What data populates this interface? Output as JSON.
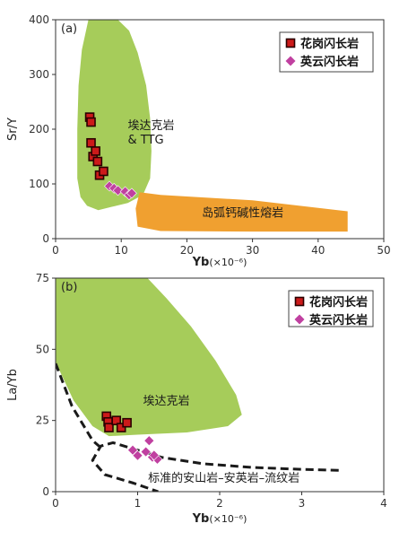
{
  "chart_data": [
    {
      "type": "scatter",
      "panel_label": "(a)",
      "xlabel_main": "Yb",
      "xlabel_unit": "(×10⁻⁶)",
      "ylabel": "Sr/Y",
      "xlim": [
        0,
        50
      ],
      "ylim": [
        0,
        400
      ],
      "xticks": [
        "0",
        "10",
        "20",
        "30",
        "40",
        "50"
      ],
      "yticks": [
        "0",
        "100",
        "200",
        "300",
        "400"
      ],
      "legend_position": "top-right",
      "series": [
        {
          "name": "花岗闪长岩",
          "marker": "square",
          "color": "#cc1a1a",
          "points": [
            [
              5.2,
              222
            ],
            [
              5.4,
              213
            ],
            [
              5.4,
              175
            ],
            [
              5.7,
              150
            ],
            [
              6.1,
              160
            ],
            [
              6.4,
              141
            ],
            [
              6.7,
              116
            ],
            [
              7.3,
              123
            ]
          ]
        },
        {
          "name": "英云闪长岩",
          "marker": "diamond",
          "color": "#c040a0",
          "points": [
            [
              8.2,
              96
            ],
            [
              8.9,
              92
            ],
            [
              9.5,
              88
            ],
            [
              10.6,
              86
            ],
            [
              11.2,
              80
            ],
            [
              11.6,
              83
            ]
          ]
        }
      ],
      "regions": [
        {
          "label_lines": [
            "埃达克岩",
            "& TTG"
          ],
          "color": "#a6cc5a",
          "label_at": [
            11.0,
            200
          ],
          "polygon": [
            [
              5,
              400
            ],
            [
              9.5,
              400
            ],
            [
              11.2,
              380
            ],
            [
              12.5,
              340
            ],
            [
              13.8,
              280
            ],
            [
              14.4,
              220
            ],
            [
              14.6,
              160
            ],
            [
              14.4,
              110
            ],
            [
              13.3,
              80
            ],
            [
              11,
              65
            ],
            [
              8.5,
              58
            ],
            [
              6.5,
              52
            ],
            [
              4.8,
              60
            ],
            [
              3.8,
              76
            ],
            [
              3.3,
              110
            ],
            [
              3.3,
              200
            ],
            [
              3.5,
              280
            ],
            [
              4,
              345
            ]
          ]
        },
        {
          "label": "岛弧钙碱性熔岩",
          "color": "#f0a030",
          "label_at": [
            28.5,
            40
          ],
          "polygon": [
            [
              12.8,
              85
            ],
            [
              16,
              80
            ],
            [
              30,
              70
            ],
            [
              44.5,
              50
            ],
            [
              44.5,
              13
            ],
            [
              30,
              13
            ],
            [
              16,
              14
            ],
            [
              12.5,
              22
            ],
            [
              12.2,
              55
            ]
          ]
        }
      ]
    },
    {
      "type": "scatter",
      "panel_label": "(b)",
      "xlabel_main": "Yb",
      "xlabel_unit": "(×10⁻⁶)",
      "ylabel": "La/Yb",
      "xlim": [
        0,
        4
      ],
      "ylim": [
        0,
        75
      ],
      "xticks": [
        "0",
        "1",
        "2",
        "3",
        "4"
      ],
      "yticks": [
        "0",
        "25",
        "50",
        "75"
      ],
      "legend_position": "top-right",
      "series": [
        {
          "name": "花岗闪长岩",
          "marker": "square",
          "color": "#cc1a1a",
          "points": [
            [
              0.62,
              26.5
            ],
            [
              0.64,
              24.5
            ],
            [
              0.65,
              22.5
            ],
            [
              0.74,
              25
            ],
            [
              0.8,
              22.5
            ],
            [
              0.87,
              24.2
            ]
          ]
        },
        {
          "name": "英云闪长岩",
          "marker": "diamond",
          "color": "#c040a0",
          "points": [
            [
              0.94,
              14.6
            ],
            [
              1.0,
              12.7
            ],
            [
              1.1,
              14.0
            ],
            [
              1.14,
              17.9
            ],
            [
              1.18,
              12.1
            ],
            [
              1.24,
              11.4
            ],
            [
              1.2,
              12.8
            ]
          ]
        }
      ],
      "regions": [
        {
          "label": "埃达克岩",
          "color": "#a6cc5a",
          "label_at": [
            1.35,
            30.5
          ],
          "polygon": [
            [
              0,
              75
            ],
            [
              1.12,
              75
            ],
            [
              1.35,
              68
            ],
            [
              1.65,
              58
            ],
            [
              1.95,
              46
            ],
            [
              2.2,
              34
            ],
            [
              2.27,
              27
            ],
            [
              2.1,
              23
            ],
            [
              1.6,
              20.8
            ],
            [
              1.0,
              20
            ],
            [
              0.65,
              19.5
            ],
            [
              0.45,
              23
            ],
            [
              0.22,
              32
            ],
            [
              0.04,
              43
            ],
            [
              0,
              45
            ]
          ]
        }
      ],
      "dashed_curves": [
        {
          "label": "标准的安山岩–安英岩–流纹岩",
          "label_at": [
            2.05,
            3.5
          ],
          "points": [
            [
              3.45,
              7.5
            ],
            [
              3.0,
              7.8
            ],
            [
              2.4,
              8.5
            ],
            [
              1.8,
              9.8
            ],
            [
              1.3,
              12
            ],
            [
              0.95,
              15
            ],
            [
              0.7,
              17.2
            ],
            [
              0.55,
              16
            ],
            [
              0.45,
              11
            ],
            [
              0.6,
              6
            ],
            [
              0.95,
              3
            ],
            [
              1.25,
              0
            ]
          ]
        },
        {
          "label": "",
          "points": [
            [
              0,
              45
            ],
            [
              0.04,
              42
            ],
            [
              0.2,
              30
            ],
            [
              0.45,
              18
            ],
            [
              0.55,
              15.5
            ]
          ]
        }
      ]
    }
  ]
}
